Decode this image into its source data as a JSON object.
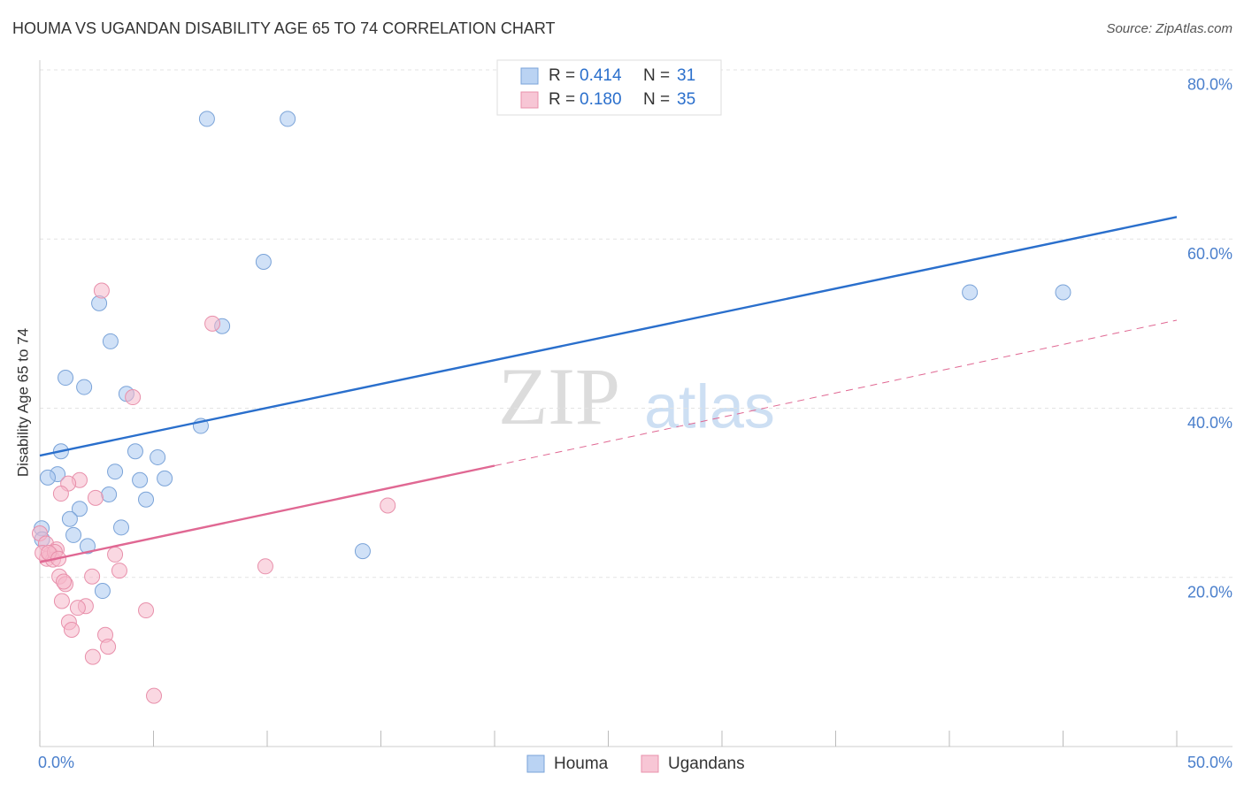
{
  "chart_data": {
    "type": "scatter",
    "title": "HOUMA VS UGANDAN DISABILITY AGE 65 TO 74 CORRELATION CHART",
    "source": "Source: ZipAtlas.com",
    "y_label": "Disability Age 65 to 74",
    "watermark": [
      "ZIP",
      "atlas"
    ],
    "xlim": [
      0,
      50
    ],
    "ylim": [
      0,
      81.5
    ],
    "xticks": [
      {
        "value": 0,
        "label": "0.0%"
      },
      5,
      10,
      15,
      20,
      25,
      30,
      35,
      40,
      45,
      {
        "value": 50,
        "label": "50.0%"
      }
    ],
    "yticks": [
      {
        "value": 20,
        "label": "20.0%"
      },
      {
        "value": 40,
        "label": "40.0%"
      },
      {
        "value": 60,
        "label": "60.0%"
      },
      {
        "value": 80,
        "label": "80.0%"
      }
    ],
    "grid": true,
    "legend_labels": {
      "r": "R =",
      "n": "N ="
    },
    "series": [
      {
        "name": "Houma",
        "color": "#a9c8f0",
        "edge": "#7aa3d8",
        "line_color": "#2a6fcc",
        "r": "0.414",
        "n": 31,
        "x": [
          7.35,
          10.9,
          9.84,
          2.61,
          8.02,
          3.11,
          1.13,
          1.95,
          3.81,
          7.08,
          0.93,
          4.2,
          5.18,
          0.78,
          0.35,
          3.31,
          4.4,
          5.49,
          3.04,
          4.67,
          1.75,
          1.32,
          3.58,
          0.08,
          1.48,
          2.1,
          14.2,
          2.76,
          40.9,
          45.0,
          0.1
        ],
        "values": [
          74.2,
          74.2,
          57.3,
          52.4,
          49.7,
          47.9,
          43.6,
          42.5,
          41.7,
          37.9,
          34.9,
          34.9,
          34.2,
          32.2,
          31.8,
          32.5,
          31.5,
          31.7,
          29.8,
          29.2,
          28.1,
          26.9,
          25.9,
          25.8,
          25.0,
          23.7,
          23.1,
          18.4,
          53.7,
          53.7,
          24.5
        ],
        "trend": {
          "x": [
            0,
            50
          ],
          "values": [
            34.4,
            62.6
          ]
        }
      },
      {
        "name": "Ugandans",
        "color": "#f5b8cb",
        "edge": "#e890ab",
        "line_color": "#e06893",
        "r": "0.180",
        "n": 35,
        "x": [
          2.72,
          7.59,
          4.09,
          1.75,
          1.25,
          0.93,
          2.45,
          15.3,
          0,
          0.27,
          0.74,
          0.47,
          0.31,
          0.58,
          0.12,
          3.31,
          9.92,
          3.5,
          2.3,
          0.86,
          1.13,
          1.05,
          0.97,
          2.02,
          1.67,
          4.67,
          1.28,
          1.4,
          2.88,
          3.0,
          2.33,
          5.02,
          0.66,
          0.39,
          0.82
        ],
        "values": [
          53.9,
          50.0,
          41.3,
          31.5,
          31.1,
          29.9,
          29.4,
          28.5,
          25.2,
          24.0,
          23.3,
          22.7,
          22.2,
          22.1,
          22.9,
          22.7,
          21.3,
          20.8,
          20.1,
          20.1,
          19.2,
          19.5,
          17.2,
          16.6,
          16.4,
          16.1,
          14.7,
          13.8,
          13.2,
          11.8,
          10.6,
          6.0,
          23.0,
          22.9,
          22.2
        ],
        "trend": {
          "x": [
            0,
            20
          ],
          "values": [
            21.8,
            33.2
          ]
        },
        "trend_extension": {
          "x": [
            20,
            50
          ],
          "values": [
            33.2,
            50.4
          ]
        }
      }
    ]
  }
}
